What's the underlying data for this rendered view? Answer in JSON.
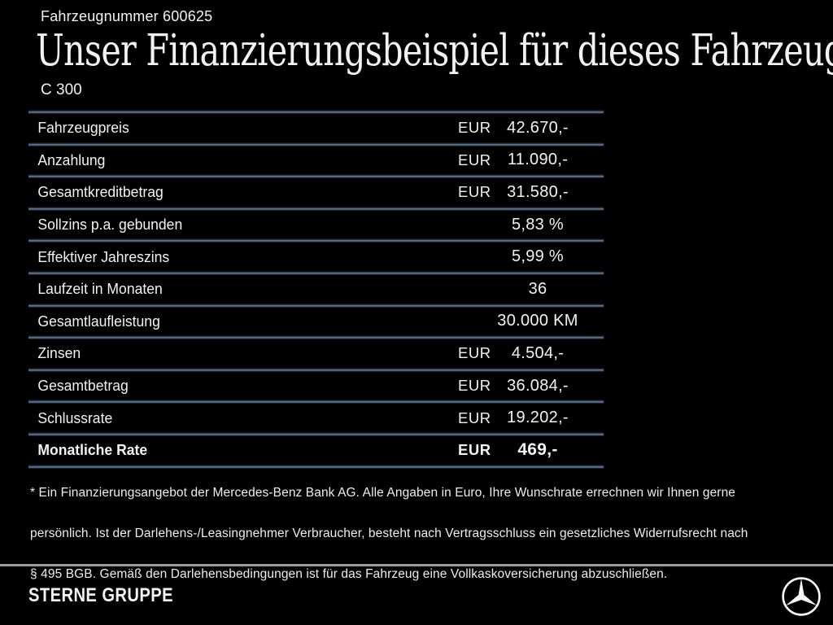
{
  "colors": {
    "background": "#000000",
    "text": "#f2f2f2",
    "table_divider": "#6e839b",
    "footer_divider": "#9c9c9c"
  },
  "header": {
    "vehicle_number": "Fahrzeugnummer 600625",
    "title": "Unser Finanzierungsbeispiel für dieses Fahrzeug.*",
    "model": "C 300"
  },
  "financing_table": {
    "rows": [
      {
        "label": "Fahrzeugpreis",
        "currency": "EUR",
        "value": "42.670,-",
        "bold": false
      },
      {
        "label": "Anzahlung",
        "currency": "EUR",
        "value": "11.090,-",
        "bold": false
      },
      {
        "label": "Gesamtkreditbetrag",
        "currency": "EUR",
        "value": "31.580,-",
        "bold": false
      },
      {
        "label": "Sollzins p.a. gebunden",
        "currency": "",
        "value": "5,83 %",
        "bold": false
      },
      {
        "label": "Effektiver Jahreszins",
        "currency": "",
        "value": "5,99 %",
        "bold": false
      },
      {
        "label": "Laufzeit in Monaten",
        "currency": "",
        "value": "36",
        "bold": false
      },
      {
        "label": "Gesamtlaufleistung",
        "currency": "",
        "value": "30.000 KM",
        "bold": false
      },
      {
        "label": "Zinsen",
        "currency": "EUR",
        "value": "4.504,-",
        "bold": false
      },
      {
        "label": "Gesamtbetrag",
        "currency": "EUR",
        "value": "36.084,-",
        "bold": false
      },
      {
        "label": "Schlussrate",
        "currency": "EUR",
        "value": "19.202,-",
        "bold": false
      },
      {
        "label": "Monatliche Rate",
        "currency": "EUR",
        "value": "469,-",
        "bold": true
      }
    ]
  },
  "footnote": {
    "lines": [
      "* Ein Finanzierungsangebot der Mercedes-Benz Bank AG. Alle Angaben in Euro, Ihre Wunschrate errechnen wir Ihnen gerne",
      "persönlich. Ist der Darlehens-/Leasingnehmer Verbraucher, besteht nach Vertragsschluss ein gesetzliches Widerrufsrecht nach",
      "§ 495 BGB. Gemäß den Darlehensbedingungen ist für das Fahrzeug eine Vollkaskoversicherung abzuschließen."
    ]
  },
  "footer": {
    "dealer_name": "STERNE GRUPPE",
    "logo": "mercedes-star-icon"
  }
}
